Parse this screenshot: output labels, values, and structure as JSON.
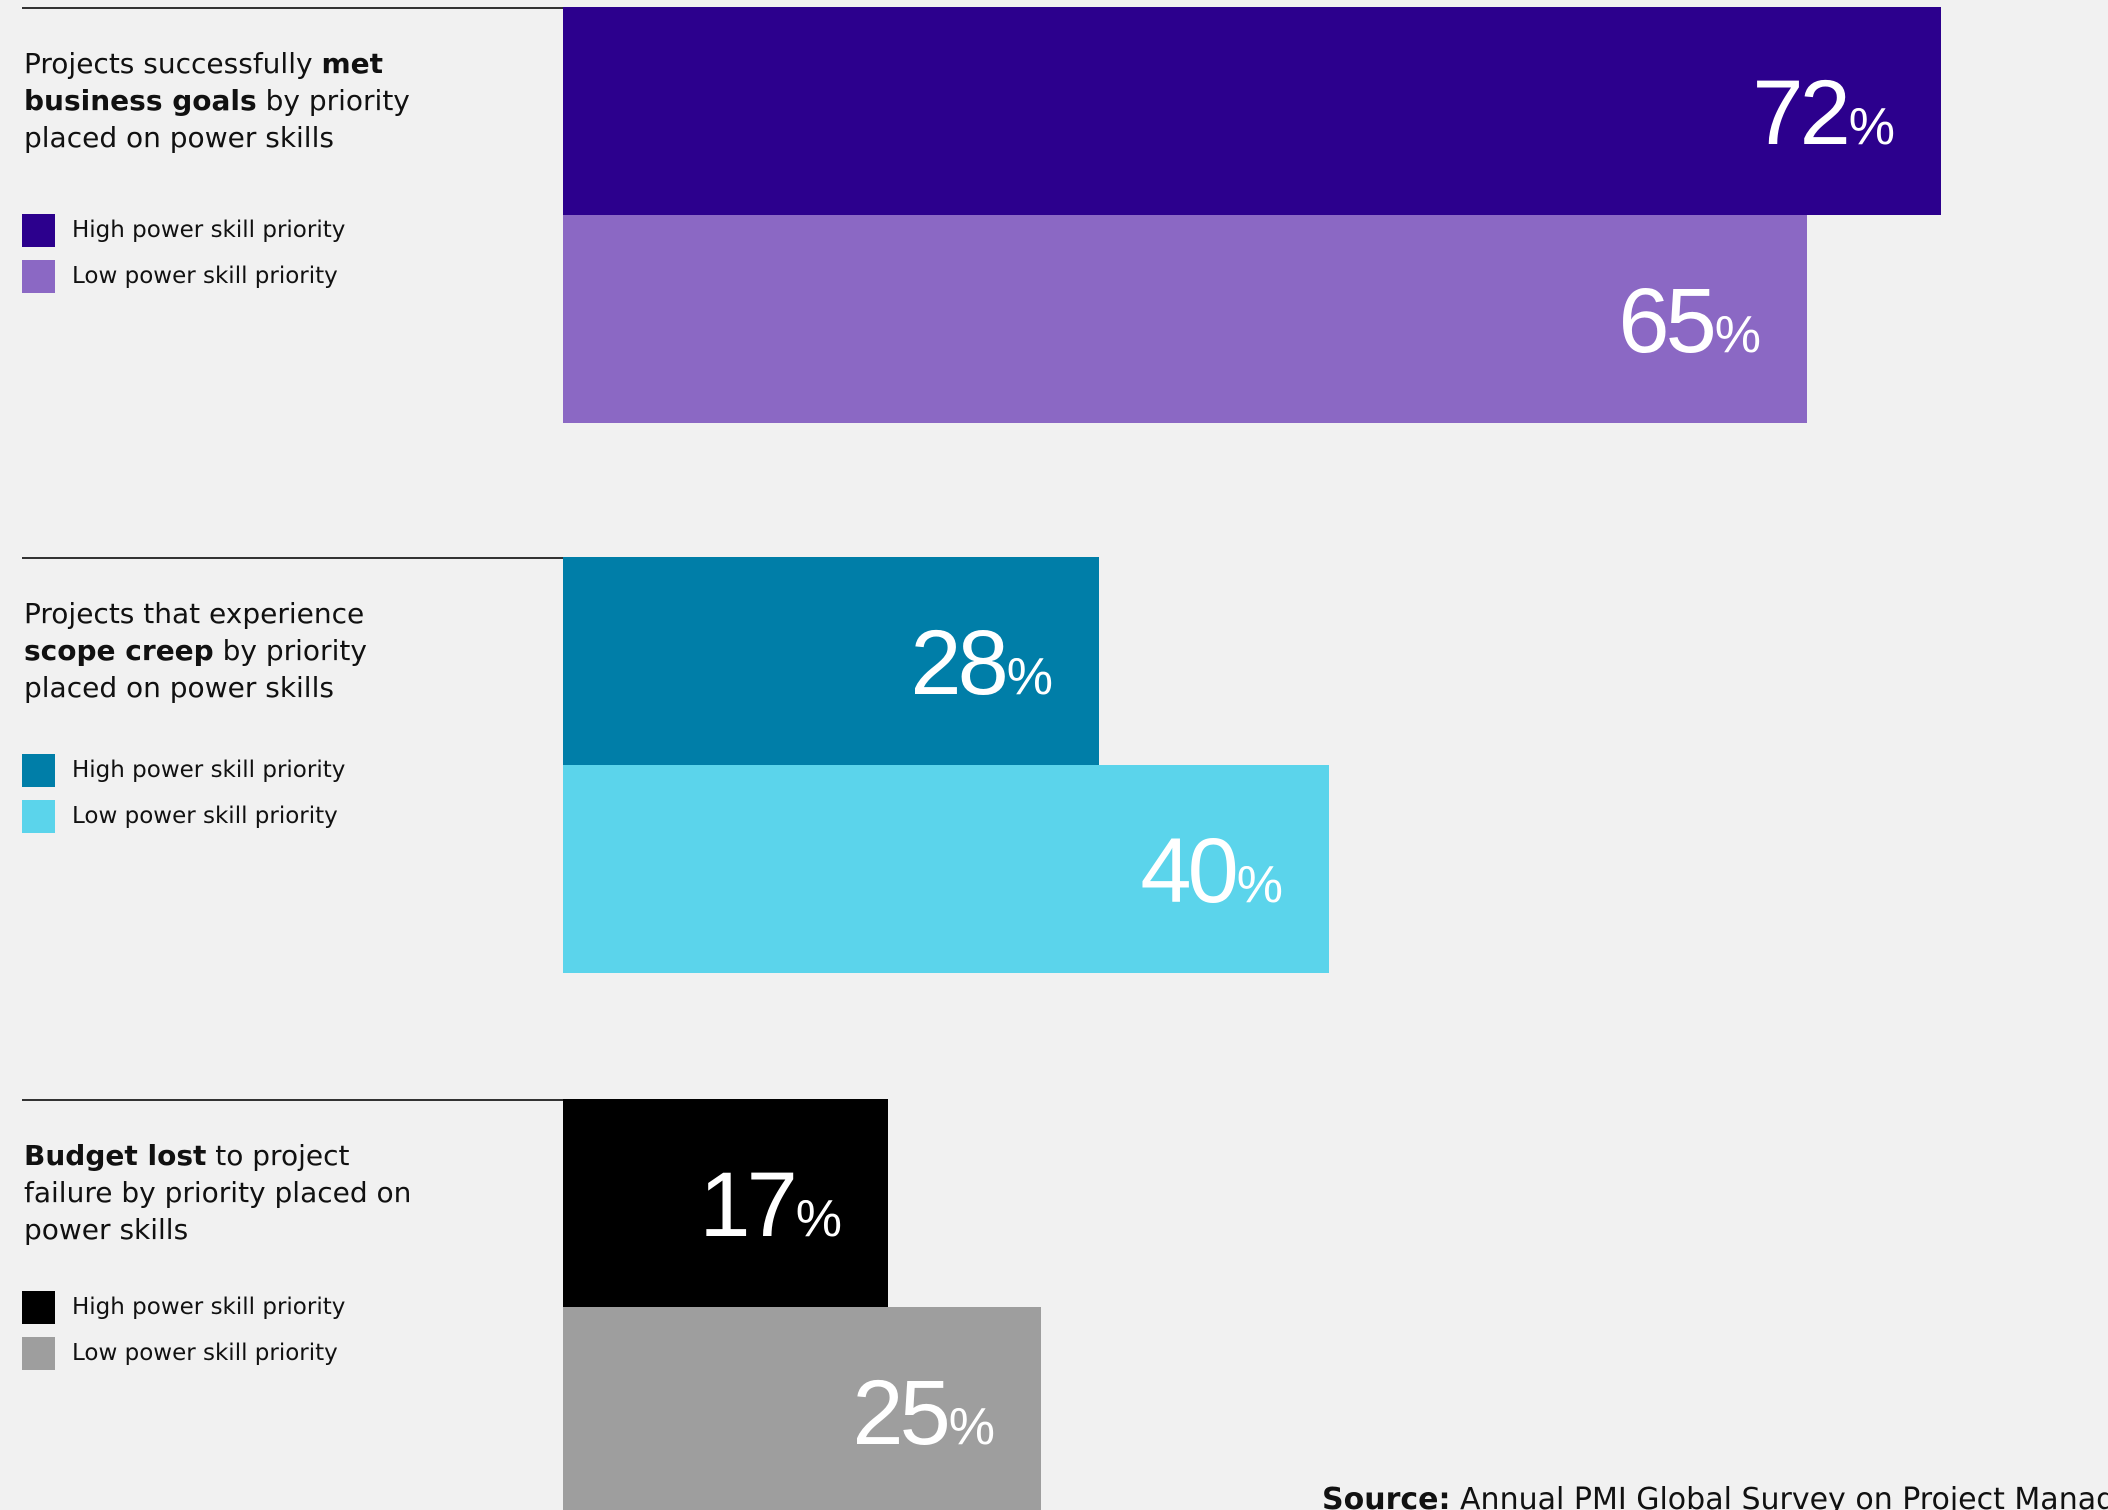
{
  "chart_data": [
    {
      "type": "bar",
      "title_pre": "Projects successfully ",
      "title_bold": "met business goals",
      "title_post": " by priority placed on power skills",
      "series": [
        {
          "name": "High power skill priority",
          "value": 72,
          "label_num": "72",
          "label_unit": "%",
          "color": "#2c008d"
        },
        {
          "name": "Low power skill priority",
          "value": 65,
          "label_num": "65",
          "label_unit": "%",
          "color": "#8b68c4"
        }
      ],
      "unit": "%"
    },
    {
      "type": "bar",
      "title_pre": "Projects that experience ",
      "title_bold": "scope creep",
      "title_post": " by priority placed on power skills",
      "series": [
        {
          "name": "High power skill priority",
          "value": 28,
          "label_num": "28",
          "label_unit": "%",
          "color": "#007ea8"
        },
        {
          "name": "Low power skill priority",
          "value": 40,
          "label_num": "40",
          "label_unit": "%",
          "color": "#5bd4eb"
        }
      ],
      "unit": "%"
    },
    {
      "type": "bar",
      "title_pre": "",
      "title_bold": "Budget lost",
      "title_post": " to project failure by priority placed on power skills",
      "series": [
        {
          "name": "High power skill priority",
          "value": 17,
          "label_num": "17",
          "label_unit": "%",
          "color": "#000000"
        },
        {
          "name": "Low power skill priority",
          "value": 25,
          "label_num": "25",
          "label_unit": "%",
          "color": "#9e9e9e"
        }
      ],
      "unit": "%"
    }
  ],
  "source": {
    "label": "Source:",
    "text": " Annual PMI Global Survey on Project Management"
  }
}
